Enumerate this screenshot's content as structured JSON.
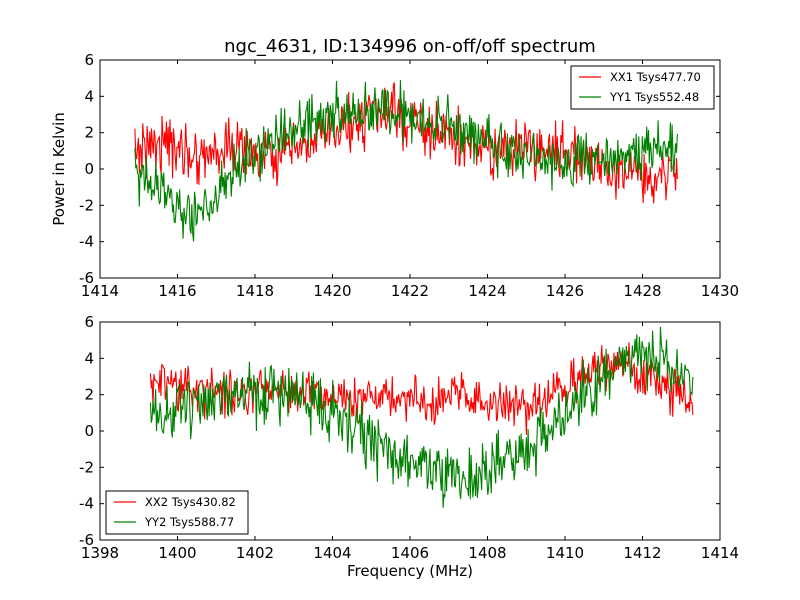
{
  "page": {
    "background": "#ffffff"
  },
  "chart_data": [
    {
      "type": "line",
      "title": "ngc_4631, ID:134996 on-off/off spectrum",
      "ylabel": "Power in Kelvin",
      "xlabel": "",
      "xlim": [
        1414,
        1430
      ],
      "ylim": [
        -6,
        6
      ],
      "xticks": [
        1414,
        1416,
        1418,
        1420,
        1422,
        1424,
        1426,
        1428,
        1430
      ],
      "yticks": [
        -6,
        -4,
        -2,
        0,
        2,
        4,
        6
      ],
      "grid": false,
      "legend_position": "upper right",
      "x_range_data": [
        1414.9,
        1428.9
      ],
      "series": [
        {
          "name": "XX1 Tsys477.70",
          "color": "#ff0000",
          "noise": 0.75,
          "control_points": [
            [
              1414.9,
              1.0
            ],
            [
              1415.5,
              1.6
            ],
            [
              1416.0,
              1.1
            ],
            [
              1416.5,
              0.8
            ],
            [
              1417.0,
              1.0
            ],
            [
              1417.5,
              1.2
            ],
            [
              1418.0,
              0.8
            ],
            [
              1418.5,
              0.7
            ],
            [
              1419.0,
              0.9
            ],
            [
              1419.5,
              1.4
            ],
            [
              1420.0,
              2.0
            ],
            [
              1420.5,
              2.5
            ],
            [
              1421.0,
              3.0
            ],
            [
              1421.5,
              3.0
            ],
            [
              1422.0,
              2.6
            ],
            [
              1422.5,
              2.1
            ],
            [
              1423.0,
              1.8
            ],
            [
              1423.5,
              1.3
            ],
            [
              1424.0,
              1.0
            ],
            [
              1424.5,
              1.0
            ],
            [
              1425.0,
              1.2
            ],
            [
              1425.5,
              1.2
            ],
            [
              1426.0,
              1.1
            ],
            [
              1426.5,
              0.6
            ],
            [
              1427.0,
              0.1
            ],
            [
              1427.5,
              -0.2
            ],
            [
              1428.0,
              -0.3
            ],
            [
              1428.5,
              -0.2
            ],
            [
              1428.9,
              0.4
            ]
          ]
        },
        {
          "name": "YY1 Tsys552.48",
          "color": "#008000",
          "noise": 0.75,
          "control_points": [
            [
              1414.9,
              0.0
            ],
            [
              1415.3,
              -0.8
            ],
            [
              1415.7,
              -1.2
            ],
            [
              1416.0,
              -2.2
            ],
            [
              1416.4,
              -2.6
            ],
            [
              1416.8,
              -2.0
            ],
            [
              1417.2,
              -0.4
            ],
            [
              1417.6,
              0.3
            ],
            [
              1418.0,
              0.8
            ],
            [
              1418.5,
              1.5
            ],
            [
              1419.0,
              2.2
            ],
            [
              1419.5,
              2.8
            ],
            [
              1420.0,
              3.0
            ],
            [
              1420.5,
              3.1
            ],
            [
              1421.0,
              3.2
            ],
            [
              1421.5,
              3.3
            ],
            [
              1422.0,
              3.0
            ],
            [
              1422.5,
              2.6
            ],
            [
              1423.0,
              2.3
            ],
            [
              1423.5,
              2.0
            ],
            [
              1424.0,
              1.4
            ],
            [
              1424.5,
              1.0
            ],
            [
              1425.0,
              0.8
            ],
            [
              1425.5,
              0.5
            ],
            [
              1426.0,
              0.4
            ],
            [
              1426.5,
              0.5
            ],
            [
              1427.0,
              0.4
            ],
            [
              1427.5,
              0.7
            ],
            [
              1428.0,
              1.0
            ],
            [
              1428.5,
              1.3
            ],
            [
              1428.9,
              1.5
            ]
          ]
        }
      ]
    },
    {
      "type": "line",
      "title": "",
      "xlabel": "Frequency (MHz)",
      "ylabel": "",
      "xlim": [
        1398,
        1414
      ],
      "ylim": [
        -6,
        6
      ],
      "xticks": [
        1398,
        1400,
        1402,
        1404,
        1406,
        1408,
        1410,
        1412,
        1414
      ],
      "yticks": [
        -6,
        -4,
        -2,
        0,
        2,
        4,
        6
      ],
      "grid": false,
      "legend_position": "lower left",
      "x_range_data": [
        1399.3,
        1413.3
      ],
      "series": [
        {
          "name": "XX2 Tsys430.82",
          "color": "#ff0000",
          "noise": 0.6,
          "control_points": [
            [
              1399.3,
              2.8
            ],
            [
              1399.7,
              2.5
            ],
            [
              1400.0,
              2.4
            ],
            [
              1400.5,
              2.2
            ],
            [
              1401.0,
              2.2
            ],
            [
              1401.5,
              2.2
            ],
            [
              1402.0,
              2.3
            ],
            [
              1402.5,
              2.4
            ],
            [
              1403.0,
              2.3
            ],
            [
              1403.5,
              2.2
            ],
            [
              1404.0,
              2.0
            ],
            [
              1404.5,
              1.9
            ],
            [
              1405.0,
              1.8
            ],
            [
              1405.5,
              1.8
            ],
            [
              1406.0,
              1.7
            ],
            [
              1406.3,
              1.5
            ],
            [
              1406.7,
              1.5
            ],
            [
              1407.0,
              1.9
            ],
            [
              1407.5,
              1.9
            ],
            [
              1408.0,
              1.5
            ],
            [
              1408.5,
              1.4
            ],
            [
              1409.0,
              1.3
            ],
            [
              1409.5,
              1.6
            ],
            [
              1410.0,
              2.3
            ],
            [
              1410.5,
              3.0
            ],
            [
              1411.0,
              3.6
            ],
            [
              1411.5,
              3.6
            ],
            [
              1412.0,
              3.0
            ],
            [
              1412.5,
              2.4
            ],
            [
              1413.0,
              2.0
            ],
            [
              1413.3,
              1.6
            ]
          ]
        },
        {
          "name": "YY2 Tsys588.77",
          "color": "#008000",
          "noise": 0.8,
          "control_points": [
            [
              1399.3,
              0.2
            ],
            [
              1399.7,
              1.0
            ],
            [
              1400.0,
              1.4
            ],
            [
              1400.5,
              1.8
            ],
            [
              1401.0,
              2.0
            ],
            [
              1401.5,
              2.1
            ],
            [
              1402.0,
              2.1
            ],
            [
              1402.5,
              2.2
            ],
            [
              1403.0,
              2.0
            ],
            [
              1403.5,
              1.6
            ],
            [
              1404.0,
              1.0
            ],
            [
              1404.5,
              0.3
            ],
            [
              1405.0,
              -0.4
            ],
            [
              1405.5,
              -1.0
            ],
            [
              1406.0,
              -1.6
            ],
            [
              1406.5,
              -2.2
            ],
            [
              1407.0,
              -2.6
            ],
            [
              1407.5,
              -2.6
            ],
            [
              1408.0,
              -2.2
            ],
            [
              1408.5,
              -1.6
            ],
            [
              1409.0,
              -1.0
            ],
            [
              1409.5,
              -0.2
            ],
            [
              1410.0,
              0.8
            ],
            [
              1410.5,
              2.0
            ],
            [
              1411.0,
              3.0
            ],
            [
              1411.5,
              3.8
            ],
            [
              1412.0,
              4.2
            ],
            [
              1412.5,
              4.0
            ],
            [
              1413.0,
              3.3
            ],
            [
              1413.3,
              2.6
            ]
          ]
        }
      ]
    }
  ]
}
